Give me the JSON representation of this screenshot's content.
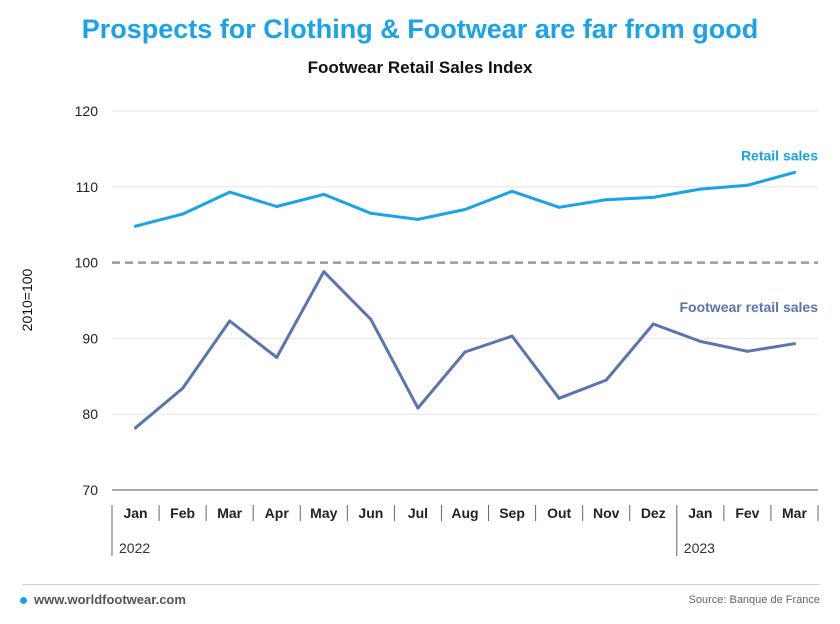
{
  "header": {
    "headline": "Prospects for Clothing & Footwear are far from good",
    "subtitle": "Footwear Retail Sales Index"
  },
  "footer": {
    "site": "www.worldfootwear.com",
    "source": "Source: Banque de France"
  },
  "colors": {
    "headline": "#1aa3e8",
    "retail_sales": "#1aa3e8",
    "footwear_retail_sales": "#5a74b0",
    "reference_line": "#9a9a9a"
  },
  "chart_data": {
    "type": "line",
    "title": "Footwear Retail Sales Index",
    "ylabel": "2010=100",
    "ylim": [
      70,
      120
    ],
    "yticks": [
      70,
      80,
      90,
      100,
      110,
      120
    ],
    "grid": true,
    "categories": [
      "Jan",
      "Feb",
      "Mar",
      "Apr",
      "May",
      "Jun",
      "Jul",
      "Aug",
      "Sep",
      "Out",
      "Nov",
      "Dez",
      "Jan",
      "Fev",
      "Mar"
    ],
    "year_groups": [
      {
        "label": "2022",
        "start": 0,
        "end": 11
      },
      {
        "label": "2023",
        "start": 12,
        "end": 14
      }
    ],
    "reference_line": {
      "value": 100,
      "style": "dashed"
    },
    "series": [
      {
        "name": "Retail sales",
        "values": [
          104.8,
          106.4,
          109.3,
          107.4,
          109.0,
          106.5,
          105.7,
          107.0,
          109.4,
          107.3,
          108.3,
          108.6,
          109.7,
          110.2,
          111.9
        ]
      },
      {
        "name": "Footwear retail sales",
        "values": [
          78.2,
          83.4,
          92.3,
          87.5,
          98.8,
          92.5,
          80.8,
          88.2,
          90.3,
          82.1,
          84.5,
          91.9,
          89.6,
          88.3,
          89.3
        ]
      }
    ]
  }
}
